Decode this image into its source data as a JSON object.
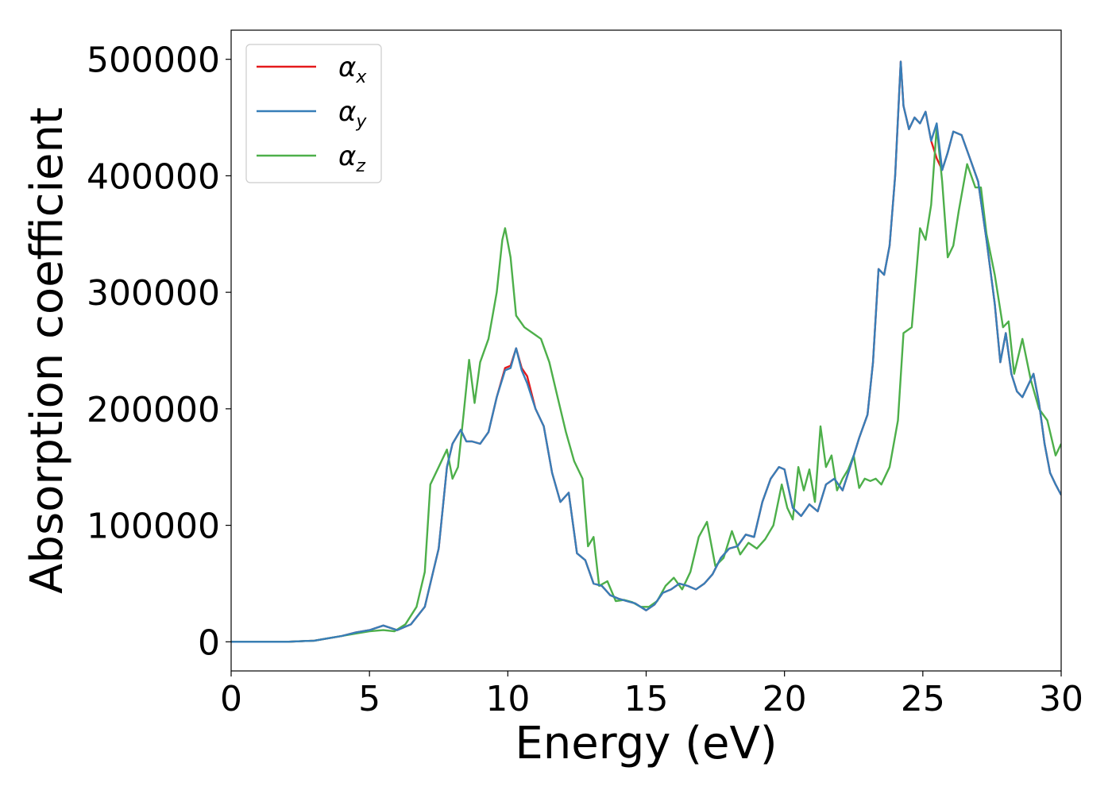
{
  "chart_data": {
    "type": "line",
    "xlabel": "Energy (eV)",
    "ylabel": "Absorption coefficient",
    "xlim": [
      0,
      30
    ],
    "ylim": [
      -25000,
      525000
    ],
    "xticks": [
      0,
      5,
      10,
      15,
      20,
      25,
      30
    ],
    "yticks": [
      0,
      100000,
      200000,
      300000,
      400000,
      500000
    ],
    "xtick_labels": [
      "0",
      "5",
      "10",
      "15",
      "20",
      "25",
      "30"
    ],
    "ytick_labels": [
      "0",
      "100000",
      "200000",
      "300000",
      "400000",
      "500000"
    ],
    "grid": false,
    "legend_position": "top-left",
    "series": [
      {
        "name": "αx",
        "name_base": "α",
        "name_sub": "x",
        "color": "#e41a1c",
        "x": [
          0,
          2,
          3,
          3.5,
          4,
          4.5,
          5,
          5.5,
          6,
          6.5,
          7,
          7.5,
          7.8,
          8.0,
          8.3,
          8.5,
          8.7,
          9.0,
          9.3,
          9.6,
          9.9,
          10.1,
          10.3,
          10.5,
          10.7,
          11.0,
          11.3,
          11.6,
          11.9,
          12.2,
          12.5,
          12.8,
          13.1,
          13.4,
          13.7,
          14.0,
          14.3,
          14.6,
          15.0,
          15.3,
          15.6,
          15.9,
          16.2,
          16.5,
          16.8,
          17.1,
          17.4,
          17.7,
          18.0,
          18.3,
          18.6,
          18.9,
          19.2,
          19.5,
          19.8,
          20.0,
          20.3,
          20.6,
          20.9,
          21.2,
          21.5,
          21.8,
          22.1,
          22.4,
          22.7,
          23.0,
          23.2,
          23.4,
          23.6,
          23.8,
          24.0,
          24.2,
          24.3,
          24.5,
          24.7,
          24.9,
          25.1,
          25.3,
          25.5,
          25.7,
          25.9,
          26.1,
          26.4,
          26.7,
          27.0,
          27.3,
          27.6,
          27.8,
          28.0,
          28.2,
          28.4,
          28.6,
          28.8,
          29.0,
          29.2,
          29.4,
          29.6,
          29.8,
          30.0
        ],
        "y": [
          0,
          0,
          1000,
          3000,
          5000,
          8000,
          10000,
          14000,
          10000,
          15000,
          30000,
          80000,
          150000,
          170000,
          182000,
          172000,
          172000,
          170000,
          180000,
          210000,
          235000,
          237000,
          252000,
          235000,
          228000,
          200000,
          185000,
          145000,
          120000,
          128000,
          76000,
          70000,
          50000,
          48000,
          40000,
          37000,
          35000,
          33000,
          27000,
          32000,
          42000,
          45000,
          50000,
          48000,
          45000,
          50000,
          58000,
          72000,
          80000,
          82000,
          92000,
          90000,
          120000,
          140000,
          150000,
          148000,
          115000,
          108000,
          118000,
          112000,
          135000,
          140000,
          130000,
          152000,
          175000,
          195000,
          240000,
          320000,
          315000,
          340000,
          400000,
          498000,
          460000,
          440000,
          450000,
          445000,
          455000,
          430000,
          415000,
          405000,
          420000,
          438000,
          435000,
          415000,
          395000,
          345000,
          290000,
          240000,
          265000,
          230000,
          215000,
          210000,
          220000,
          230000,
          205000,
          170000,
          145000,
          135000,
          126000
        ]
      },
      {
        "name": "αy",
        "name_base": "α",
        "name_sub": "y",
        "color": "#377eb8",
        "x": [
          0,
          2,
          3,
          3.5,
          4,
          4.5,
          5,
          5.5,
          6,
          6.5,
          7,
          7.5,
          7.8,
          8.0,
          8.3,
          8.5,
          8.7,
          9.0,
          9.3,
          9.6,
          9.9,
          10.1,
          10.3,
          10.5,
          10.7,
          11.0,
          11.3,
          11.6,
          11.9,
          12.2,
          12.5,
          12.8,
          13.1,
          13.4,
          13.7,
          14.0,
          14.3,
          14.6,
          15.0,
          15.3,
          15.6,
          15.9,
          16.2,
          16.5,
          16.8,
          17.1,
          17.4,
          17.7,
          18.0,
          18.3,
          18.6,
          18.9,
          19.2,
          19.5,
          19.8,
          20.0,
          20.3,
          20.6,
          20.9,
          21.2,
          21.5,
          21.8,
          22.1,
          22.4,
          22.7,
          23.0,
          23.2,
          23.4,
          23.6,
          23.8,
          24.0,
          24.2,
          24.3,
          24.5,
          24.7,
          24.9,
          25.1,
          25.3,
          25.5,
          25.7,
          25.9,
          26.1,
          26.4,
          26.7,
          27.0,
          27.3,
          27.6,
          27.8,
          28.0,
          28.2,
          28.4,
          28.6,
          28.8,
          29.0,
          29.2,
          29.4,
          29.6,
          29.8,
          30.0
        ],
        "y": [
          0,
          0,
          1000,
          3000,
          5000,
          8000,
          10000,
          14000,
          10000,
          15000,
          30000,
          80000,
          150000,
          170000,
          182000,
          172000,
          172000,
          170000,
          180000,
          210000,
          233000,
          235000,
          252000,
          233000,
          222000,
          200000,
          185000,
          145000,
          120000,
          128000,
          76000,
          70000,
          50000,
          48000,
          40000,
          37000,
          35000,
          33000,
          27000,
          32000,
          42000,
          45000,
          50000,
          48000,
          45000,
          50000,
          58000,
          72000,
          80000,
          82000,
          92000,
          90000,
          120000,
          140000,
          150000,
          148000,
          115000,
          108000,
          118000,
          112000,
          135000,
          140000,
          130000,
          152000,
          175000,
          195000,
          240000,
          320000,
          315000,
          340000,
          400000,
          498000,
          460000,
          440000,
          450000,
          445000,
          455000,
          430000,
          445000,
          405000,
          420000,
          438000,
          435000,
          415000,
          395000,
          345000,
          290000,
          240000,
          265000,
          230000,
          215000,
          210000,
          220000,
          230000,
          205000,
          170000,
          145000,
          135000,
          126000
        ]
      },
      {
        "name": "αz",
        "name_base": "α",
        "name_sub": "z",
        "color": "#4daf4a",
        "x": [
          0,
          2,
          3,
          3.5,
          4,
          4.5,
          5,
          5.5,
          5.9,
          6.3,
          6.7,
          7.0,
          7.2,
          7.5,
          7.8,
          8.0,
          8.2,
          8.4,
          8.6,
          8.8,
          9.0,
          9.3,
          9.6,
          9.8,
          9.9,
          10.1,
          10.3,
          10.6,
          10.9,
          11.2,
          11.5,
          11.8,
          12.1,
          12.4,
          12.7,
          12.9,
          13.1,
          13.3,
          13.6,
          13.9,
          14.2,
          14.5,
          14.8,
          15.1,
          15.4,
          15.7,
          16.0,
          16.3,
          16.6,
          16.9,
          17.2,
          17.5,
          17.8,
          18.1,
          18.4,
          18.7,
          19.0,
          19.3,
          19.6,
          19.9,
          20.1,
          20.3,
          20.5,
          20.7,
          20.9,
          21.1,
          21.3,
          21.5,
          21.7,
          21.9,
          22.1,
          22.3,
          22.5,
          22.7,
          22.9,
          23.1,
          23.3,
          23.5,
          23.8,
          24.1,
          24.3,
          24.6,
          24.9,
          25.1,
          25.3,
          25.5,
          25.7,
          25.9,
          26.1,
          26.3,
          26.6,
          26.9,
          27.1,
          27.3,
          27.6,
          27.9,
          28.1,
          28.3,
          28.6,
          28.9,
          29.2,
          29.5,
          29.8,
          30.0
        ],
        "y": [
          0,
          0,
          1000,
          3000,
          5000,
          7000,
          9000,
          10000,
          9000,
          15000,
          30000,
          60000,
          135000,
          150000,
          165000,
          140000,
          150000,
          195000,
          242000,
          205000,
          240000,
          260000,
          300000,
          345000,
          355000,
          330000,
          280000,
          270000,
          265000,
          260000,
          240000,
          210000,
          180000,
          155000,
          140000,
          82000,
          90000,
          48000,
          52000,
          35000,
          36000,
          34000,
          30000,
          30000,
          35000,
          48000,
          55000,
          45000,
          60000,
          90000,
          103000,
          65000,
          72000,
          95000,
          75000,
          85000,
          80000,
          88000,
          100000,
          135000,
          115000,
          105000,
          150000,
          130000,
          148000,
          120000,
          185000,
          150000,
          160000,
          130000,
          140000,
          148000,
          160000,
          132000,
          140000,
          138000,
          140000,
          135000,
          150000,
          190000,
          265000,
          270000,
          355000,
          345000,
          375000,
          442000,
          395000,
          330000,
          340000,
          370000,
          410000,
          390000,
          390000,
          350000,
          315000,
          270000,
          275000,
          230000,
          260000,
          225000,
          200000,
          190000,
          160000,
          170000
        ]
      }
    ]
  }
}
